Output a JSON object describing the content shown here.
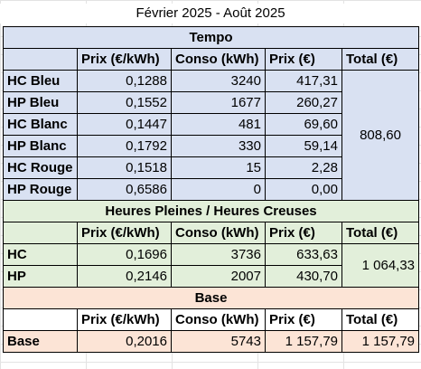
{
  "title": "Février 2025 - Août 2025",
  "headers": {
    "price": "Prix (€/kWh)",
    "conso": "Conso (kWh)",
    "cost": "Prix (€)",
    "total": "Total (€)"
  },
  "colors": {
    "tempo": "#d9e1f2",
    "hphc": "#e2efda",
    "base": "#fce4d6"
  },
  "tempo": {
    "title": "Tempo",
    "rows": [
      {
        "label": "HC Bleu",
        "price": "0,1288",
        "conso": "3240",
        "cost": "417,31"
      },
      {
        "label": "HP Bleu",
        "price": "0,1552",
        "conso": "1677",
        "cost": "260,27"
      },
      {
        "label": "HC Blanc",
        "price": "0,1447",
        "conso": "481",
        "cost": "69,60"
      },
      {
        "label": "HP Blanc",
        "price": "0,1792",
        "conso": "330",
        "cost": "59,14"
      },
      {
        "label": "HC Rouge",
        "price": "0,1518",
        "conso": "15",
        "cost": "2,28"
      },
      {
        "label": "HP Rouge",
        "price": "0,6586",
        "conso": "0",
        "cost": "0,00"
      }
    ],
    "total": "808,60"
  },
  "hphc": {
    "title": "Heures Pleines / Heures Creuses",
    "rows": [
      {
        "label": "HC",
        "price": "0,1696",
        "conso": "3736",
        "cost": "633,63"
      },
      {
        "label": "HP",
        "price": "0,2146",
        "conso": "2007",
        "cost": "430,70"
      }
    ],
    "total": "1 064,33"
  },
  "base": {
    "title": "Base",
    "rows": [
      {
        "label": "Base",
        "price": "0,2016",
        "conso": "5743",
        "cost": "1 157,79"
      }
    ],
    "total": "1 157,79"
  }
}
